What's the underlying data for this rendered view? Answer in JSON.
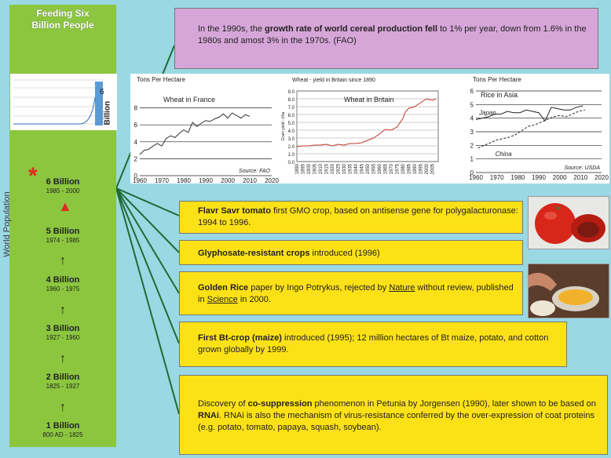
{
  "left_panel": {
    "title_line1": "Feeding Six",
    "title_line2": "Billion People",
    "y_axis_label": "World Population",
    "thumbnail_label": "Billion",
    "thumbnail_value": "6",
    "milestones": [
      {
        "label": "6 Billion",
        "years": "1985 - 2000"
      },
      {
        "label": "5 Billion",
        "years": "1974 - 1985"
      },
      {
        "label": "4 Billion",
        "years": "1960 - 1975"
      },
      {
        "label": "3 Billion",
        "years": "1927 - 1960"
      },
      {
        "label": "2 Billion",
        "years": "1825 - 1927"
      },
      {
        "label": "1 Billion",
        "years": "800 AD - 1825"
      }
    ]
  },
  "purple_box": {
    "part1": "In the 1990s, the ",
    "bold": "growth rate of world cereal production fell",
    "part2": " to 1% per year, down from 1.6% in the 1980s and amost 3% in the 1970s. (FAO)"
  },
  "events": [
    {
      "bold": "Flavr Savr tomato",
      "text": " first GMO crop, based on antisense gene for polygalacturonase: 1994 to 1996."
    },
    {
      "bold": "Glyphosate-resistant crops",
      "text": " introduced (1996)"
    },
    {
      "bold": "Golden Rice",
      "text_a": " paper by Ingo Potrykus, rejected by ",
      "link1": "Nature",
      "text_b": " without review, published in ",
      "link2": "Science",
      "text_c": " in 2000."
    },
    {
      "bold": "First Bt-crop (maize)",
      "text": " introduced (1995); 12 million hectares of Bt maize, potato, and cotton grown globally by 1999."
    },
    {
      "text_a": "Discovery of ",
      "bold1": "co-suppression",
      "text_b": " phenomenon in Petunia by Jorgensen (1990), later shown to be based on ",
      "bold2": "RNAi",
      "text_c": ". RNAi is also the mechanism of virus-resistance conferred by the over-expression of coat proteins (e.g. potato, tomato, papaya, squash, soybean)."
    }
  ],
  "colors": {
    "background": "#9ad8e4",
    "left_panel": "#8cc63f",
    "purple_box": "#d7a6d8",
    "event_box": "#fde117",
    "connector": "#1e6b34",
    "accent_red": "#e02b20",
    "britain_line": "#c0392b"
  },
  "chart_data": [
    {
      "type": "line",
      "ylabel": "Tons Per Hectare",
      "annotation": "Wheat in France",
      "source": "Source: FAO",
      "xlim": [
        1960,
        2020
      ],
      "ylim": [
        0,
        10
      ],
      "xticks": [
        1960,
        1970,
        1980,
        1990,
        2000,
        2010,
        2020
      ],
      "yticks": [
        0,
        2,
        4,
        6,
        8
      ],
      "series": [
        {
          "x": [
            1960,
            1962,
            1964,
            1966,
            1968,
            1970,
            1972,
            1974,
            1976,
            1978,
            1980,
            1982,
            1984,
            1986,
            1988,
            1990,
            1992,
            1994,
            1996,
            1998,
            2000,
            2002,
            2004,
            2006,
            2008,
            2010
          ],
          "y": [
            2.5,
            3.0,
            3.1,
            3.5,
            3.8,
            3.5,
            4.4,
            4.7,
            4.5,
            5.0,
            5.4,
            5.1,
            6.3,
            5.8,
            6.2,
            6.5,
            6.4,
            6.7,
            6.9,
            7.3,
            6.8,
            7.4,
            7.1,
            6.8,
            7.2,
            7.0
          ]
        }
      ]
    },
    {
      "type": "line",
      "title": "Wheat - yield in Britain since 1890",
      "annotation": "Wheat in Britain",
      "ylabel": "Grain yield - t/ha",
      "xlim": [
        1890,
        2010
      ],
      "ylim": [
        0,
        9
      ],
      "yticks": [
        0.0,
        1.0,
        2.0,
        3.0,
        4.0,
        5.0,
        6.0,
        7.0,
        8.0,
        9.0
      ],
      "xtick_labels": [
        "1890",
        "1895",
        "1900",
        "1905",
        "1910",
        "1915",
        "1920",
        "1925",
        "1930",
        "1935",
        "1940",
        "1945",
        "1950",
        "1955",
        "1960",
        "1965",
        "1970",
        "1975",
        "1980",
        "1985",
        "1990",
        "1995",
        "2000",
        "2005"
      ],
      "series": [
        {
          "x": [
            1890,
            1895,
            1900,
            1905,
            1910,
            1915,
            1920,
            1925,
            1930,
            1935,
            1940,
            1945,
            1950,
            1955,
            1960,
            1965,
            1970,
            1975,
            1980,
            1982,
            1985,
            1990,
            1995,
            2000,
            2005,
            2008
          ],
          "y": [
            1.9,
            2.0,
            2.0,
            2.1,
            2.1,
            2.2,
            2.0,
            2.2,
            2.1,
            2.3,
            2.3,
            2.4,
            2.7,
            3.0,
            3.5,
            4.1,
            4.0,
            4.4,
            5.5,
            6.3,
            6.8,
            7.0,
            7.5,
            8.0,
            7.8,
            8.0
          ]
        }
      ]
    },
    {
      "type": "line",
      "ylabel": "Tons Per Hectare",
      "annotation": "Rice in Asia",
      "source": "Source: USDA",
      "xlim": [
        1960,
        2020
      ],
      "ylim": [
        0,
        6
      ],
      "xticks": [
        1960,
        1970,
        1980,
        1990,
        2000,
        2010,
        2020
      ],
      "yticks": [
        0,
        1,
        2,
        3,
        4,
        5,
        6
      ],
      "series": [
        {
          "name": "Japan",
          "x": [
            1960,
            1963,
            1966,
            1969,
            1972,
            1975,
            1978,
            1981,
            1984,
            1987,
            1990,
            1993,
            1996,
            1999,
            2002,
            2005,
            2008,
            2011
          ],
          "y": [
            3.9,
            4.0,
            4.1,
            4.3,
            4.3,
            4.5,
            4.4,
            4.4,
            4.6,
            4.5,
            4.4,
            3.8,
            4.8,
            4.7,
            4.6,
            4.6,
            4.8,
            4.9
          ]
        },
        {
          "name": "China",
          "x": [
            1961,
            1964,
            1967,
            1970,
            1973,
            1976,
            1979,
            1982,
            1985,
            1988,
            1991,
            1994,
            1997,
            2000,
            2003,
            2006,
            2009,
            2012
          ],
          "y": [
            1.8,
            2.0,
            2.2,
            2.4,
            2.5,
            2.6,
            2.8,
            3.1,
            3.4,
            3.5,
            3.7,
            3.9,
            4.1,
            4.2,
            4.1,
            4.3,
            4.5,
            4.6
          ]
        }
      ]
    }
  ]
}
